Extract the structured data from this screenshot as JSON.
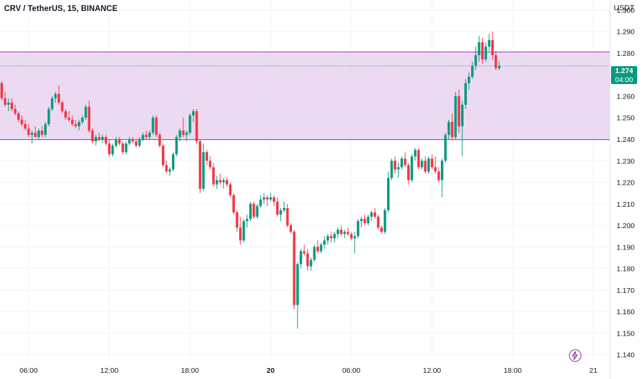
{
  "header": {
    "title": "CRV / TetherUS, 15, BINANCE",
    "currency": "USDT"
  },
  "last_price": {
    "value": "1.274",
    "countdown": "04:00"
  },
  "colors": {
    "up": "#089981",
    "down": "#f23645",
    "zone_fill": "#e7d3ef",
    "zone_line": "#9c27b0",
    "grid": "#f0f3fa",
    "price_line": "#089981"
  },
  "icons": {
    "alert": "lightning-icon"
  },
  "chart_data": {
    "type": "candlestick",
    "title": "CRV / TetherUS, 15, BINANCE",
    "ylabel": "USDT",
    "ylim": [
      1.14,
      1.3
    ],
    "y_ticks": [
      "1.140",
      "1.150",
      "1.160",
      "1.170",
      "1.180",
      "1.190",
      "1.200",
      "1.210",
      "1.220",
      "1.230",
      "1.240",
      "1.250",
      "1.260",
      "1.270",
      "1.280",
      "1.290",
      "1.300"
    ],
    "x_ticks": [
      {
        "label": "06:00",
        "bar": 8
      },
      {
        "label": "12:00",
        "bar": 32
      },
      {
        "label": "18:00",
        "bar": 56
      },
      {
        "label": "20",
        "bar": 80,
        "bold": true
      },
      {
        "label": "06:00",
        "bar": 104
      },
      {
        "label": "12:00",
        "bar": 128
      },
      {
        "label": "18:00",
        "bar": 152
      },
      {
        "label": "21",
        "bar": 176
      }
    ],
    "zone": {
      "top": 1.2805,
      "bottom": 1.2398
    },
    "last_close": 1.274,
    "candles": [
      [
        1.266,
        1.267,
        1.258,
        1.259
      ],
      [
        1.259,
        1.262,
        1.255,
        1.256
      ],
      [
        1.256,
        1.259,
        1.253,
        1.257
      ],
      [
        1.257,
        1.259,
        1.253,
        1.254
      ],
      [
        1.254,
        1.256,
        1.251,
        1.252
      ],
      [
        1.252,
        1.253,
        1.248,
        1.249
      ],
      [
        1.249,
        1.251,
        1.246,
        1.247
      ],
      [
        1.247,
        1.249,
        1.244,
        1.245
      ],
      [
        1.245,
        1.247,
        1.241,
        1.242
      ],
      [
        1.242,
        1.244,
        1.238,
        1.243
      ],
      [
        1.243,
        1.246,
        1.241,
        1.241
      ],
      [
        1.241,
        1.245,
        1.24,
        1.244
      ],
      [
        1.244,
        1.246,
        1.241,
        1.242
      ],
      [
        1.242,
        1.248,
        1.241,
        1.247
      ],
      [
        1.247,
        1.255,
        1.246,
        1.254
      ],
      [
        1.254,
        1.26,
        1.253,
        1.259
      ],
      [
        1.259,
        1.262,
        1.257,
        1.261
      ],
      [
        1.261,
        1.265,
        1.256,
        1.257
      ],
      [
        1.257,
        1.258,
        1.252,
        1.253
      ],
      [
        1.253,
        1.254,
        1.249,
        1.25
      ],
      [
        1.25,
        1.253,
        1.248,
        1.249
      ],
      [
        1.249,
        1.251,
        1.246,
        1.247
      ],
      [
        1.247,
        1.249,
        1.245,
        1.246
      ],
      [
        1.246,
        1.249,
        1.244,
        1.248
      ],
      [
        1.248,
        1.251,
        1.247,
        1.25
      ],
      [
        1.25,
        1.256,
        1.249,
        1.255
      ],
      [
        1.255,
        1.258,
        1.243,
        1.244
      ],
      [
        1.244,
        1.245,
        1.238,
        1.239
      ],
      [
        1.239,
        1.242,
        1.237,
        1.241
      ],
      [
        1.241,
        1.243,
        1.239,
        1.24
      ],
      [
        1.24,
        1.242,
        1.238,
        1.241
      ],
      [
        1.241,
        1.242,
        1.237,
        1.238
      ],
      [
        1.238,
        1.24,
        1.232,
        1.233
      ],
      [
        1.233,
        1.238,
        1.232,
        1.237
      ],
      [
        1.237,
        1.241,
        1.236,
        1.24
      ],
      [
        1.24,
        1.241,
        1.237,
        1.238
      ],
      [
        1.238,
        1.239,
        1.233,
        1.234
      ],
      [
        1.234,
        1.239,
        1.233,
        1.238
      ],
      [
        1.238,
        1.241,
        1.237,
        1.24
      ],
      [
        1.24,
        1.241,
        1.238,
        1.239
      ],
      [
        1.239,
        1.24,
        1.236,
        1.237
      ],
      [
        1.237,
        1.241,
        1.236,
        1.24
      ],
      [
        1.24,
        1.243,
        1.239,
        1.242
      ],
      [
        1.242,
        1.244,
        1.24,
        1.241
      ],
      [
        1.241,
        1.244,
        1.24,
        1.243
      ],
      [
        1.243,
        1.251,
        1.242,
        1.25
      ],
      [
        1.25,
        1.251,
        1.241,
        1.242
      ],
      [
        1.242,
        1.243,
        1.236,
        1.237
      ],
      [
        1.237,
        1.238,
        1.227,
        1.228
      ],
      [
        1.228,
        1.23,
        1.224,
        1.225
      ],
      [
        1.225,
        1.227,
        1.223,
        1.226
      ],
      [
        1.226,
        1.234,
        1.225,
        1.233
      ],
      [
        1.233,
        1.242,
        1.232,
        1.241
      ],
      [
        1.241,
        1.245,
        1.239,
        1.244
      ],
      [
        1.244,
        1.25,
        1.241,
        1.242
      ],
      [
        1.242,
        1.244,
        1.239,
        1.243
      ],
      [
        1.243,
        1.252,
        1.242,
        1.251
      ],
      [
        1.251,
        1.254,
        1.248,
        1.253
      ],
      [
        1.253,
        1.254,
        1.238,
        1.239
      ],
      [
        1.239,
        1.24,
        1.215,
        1.217
      ],
      [
        1.217,
        1.238,
        1.216,
        1.234
      ],
      [
        1.234,
        1.235,
        1.228,
        1.23
      ],
      [
        1.23,
        1.232,
        1.226,
        1.227
      ],
      [
        1.227,
        1.229,
        1.218,
        1.219
      ],
      [
        1.219,
        1.223,
        1.217,
        1.221
      ],
      [
        1.221,
        1.224,
        1.219,
        1.22
      ],
      [
        1.22,
        1.222,
        1.217,
        1.221
      ],
      [
        1.221,
        1.222,
        1.218,
        1.219
      ],
      [
        1.219,
        1.22,
        1.213,
        1.214
      ],
      [
        1.214,
        1.215,
        1.205,
        1.206
      ],
      [
        1.206,
        1.207,
        1.197,
        1.199
      ],
      [
        1.199,
        1.204,
        1.191,
        1.193
      ],
      [
        1.193,
        1.203,
        1.192,
        1.202
      ],
      [
        1.202,
        1.205,
        1.199,
        1.203
      ],
      [
        1.203,
        1.211,
        1.202,
        1.21
      ],
      [
        1.21,
        1.211,
        1.203,
        1.204
      ],
      [
        1.204,
        1.21,
        1.203,
        1.209
      ],
      [
        1.209,
        1.214,
        1.208,
        1.212
      ],
      [
        1.212,
        1.215,
        1.21,
        1.213
      ],
      [
        1.213,
        1.214,
        1.209,
        1.212
      ],
      [
        1.212,
        1.215,
        1.211,
        1.213
      ],
      [
        1.213,
        1.214,
        1.209,
        1.211
      ],
      [
        1.211,
        1.213,
        1.204,
        1.205
      ],
      [
        1.205,
        1.208,
        1.202,
        1.207
      ],
      [
        1.207,
        1.211,
        1.206,
        1.208
      ],
      [
        1.208,
        1.21,
        1.199,
        1.2
      ],
      [
        1.2,
        1.201,
        1.196,
        1.197
      ],
      [
        1.197,
        1.198,
        1.161,
        1.163
      ],
      [
        1.163,
        1.183,
        1.152,
        1.182
      ],
      [
        1.182,
        1.189,
        1.18,
        1.188
      ],
      [
        1.188,
        1.191,
        1.186,
        1.187
      ],
      [
        1.187,
        1.189,
        1.179,
        1.181
      ],
      [
        1.181,
        1.185,
        1.179,
        1.184
      ],
      [
        1.184,
        1.191,
        1.183,
        1.19
      ],
      [
        1.19,
        1.193,
        1.187,
        1.188
      ],
      [
        1.188,
        1.192,
        1.187,
        1.191
      ],
      [
        1.191,
        1.195,
        1.189,
        1.193
      ],
      [
        1.193,
        1.196,
        1.191,
        1.195
      ],
      [
        1.195,
        1.197,
        1.192,
        1.194
      ],
      [
        1.194,
        1.197,
        1.192,
        1.196
      ],
      [
        1.196,
        1.199,
        1.194,
        1.198
      ],
      [
        1.198,
        1.2,
        1.195,
        1.196
      ],
      [
        1.196,
        1.198,
        1.194,
        1.197
      ],
      [
        1.197,
        1.199,
        1.195,
        1.196
      ],
      [
        1.196,
        1.197,
        1.193,
        1.194
      ],
      [
        1.194,
        1.197,
        1.187,
        1.195
      ],
      [
        1.195,
        1.203,
        1.194,
        1.202
      ],
      [
        1.202,
        1.204,
        1.199,
        1.203
      ],
      [
        1.203,
        1.205,
        1.2,
        1.201
      ],
      [
        1.201,
        1.205,
        1.2,
        1.204
      ],
      [
        1.204,
        1.207,
        1.202,
        1.206
      ],
      [
        1.206,
        1.208,
        1.203,
        1.204
      ],
      [
        1.204,
        1.205,
        1.198,
        1.199
      ],
      [
        1.199,
        1.2,
        1.196,
        1.197
      ],
      [
        1.197,
        1.208,
        1.196,
        1.207
      ],
      [
        1.207,
        1.225,
        1.206,
        1.222
      ],
      [
        1.222,
        1.231,
        1.221,
        1.23
      ],
      [
        1.23,
        1.232,
        1.224,
        1.226
      ],
      [
        1.226,
        1.229,
        1.222,
        1.227
      ],
      [
        1.227,
        1.232,
        1.226,
        1.231
      ],
      [
        1.231,
        1.234,
        1.227,
        1.228
      ],
      [
        1.228,
        1.229,
        1.219,
        1.221
      ],
      [
        1.221,
        1.233,
        1.22,
        1.232
      ],
      [
        1.232,
        1.236,
        1.23,
        1.235
      ],
      [
        1.235,
        1.236,
        1.226,
        1.227
      ],
      [
        1.227,
        1.231,
        1.226,
        1.23
      ],
      [
        1.23,
        1.232,
        1.224,
        1.225
      ],
      [
        1.225,
        1.232,
        1.224,
        1.231
      ],
      [
        1.231,
        1.233,
        1.226,
        1.227
      ],
      [
        1.227,
        1.232,
        1.224,
        1.225
      ],
      [
        1.225,
        1.227,
        1.22,
        1.221
      ],
      [
        1.221,
        1.231,
        1.213,
        1.23
      ],
      [
        1.23,
        1.243,
        1.229,
        1.242
      ],
      [
        1.242,
        1.249,
        1.24,
        1.248
      ],
      [
        1.248,
        1.252,
        1.24,
        1.241
      ],
      [
        1.241,
        1.262,
        1.24,
        1.26
      ],
      [
        1.26,
        1.263,
        1.243,
        1.246
      ],
      [
        1.246,
        1.258,
        1.232,
        1.256
      ],
      [
        1.256,
        1.268,
        1.254,
        1.266
      ],
      [
        1.266,
        1.271,
        1.263,
        1.269
      ],
      [
        1.269,
        1.276,
        1.268,
        1.274
      ],
      [
        1.274,
        1.283,
        1.272,
        1.279
      ],
      [
        1.279,
        1.288,
        1.276,
        1.285
      ],
      [
        1.285,
        1.287,
        1.275,
        1.277
      ],
      [
        1.277,
        1.285,
        1.276,
        1.283
      ],
      [
        1.283,
        1.289,
        1.281,
        1.286
      ],
      [
        1.286,
        1.29,
        1.277,
        1.279
      ],
      [
        1.279,
        1.281,
        1.272,
        1.273
      ],
      [
        1.273,
        1.276,
        1.272,
        1.274
      ]
    ]
  }
}
